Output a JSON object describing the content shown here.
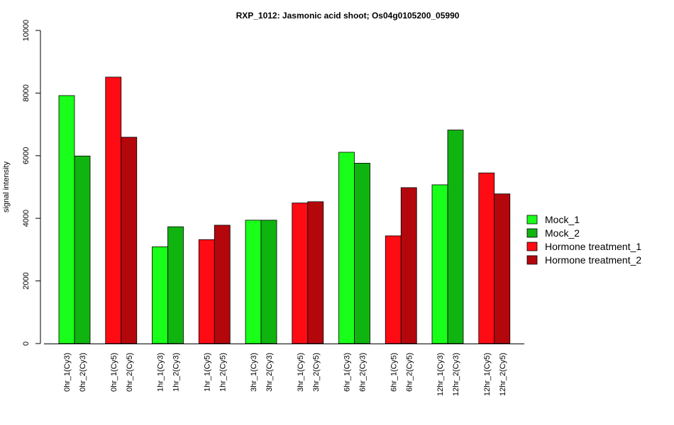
{
  "chart_data": {
    "type": "bar",
    "title": "RXP_1012: Jasmonic acid shoot; Os04g0105200_05990",
    "xlabel": "",
    "ylabel": "signal intensity",
    "ylim": [
      0,
      10000
    ],
    "yticks": [
      0,
      2000,
      4000,
      6000,
      8000,
      10000
    ],
    "grid": false,
    "legend_position": "right",
    "categories": [
      "0hr_1(Cy3)",
      "0hr_2(Cy3)",
      "0hr_1(Cy5)",
      "0hr_2(Cy5)",
      "1hr_1(Cy3)",
      "1hr_2(Cy3)",
      "1hr_1(Cy5)",
      "1hr_2(Cy5)",
      "3hr_1(Cy3)",
      "3hr_2(Cy3)",
      "3hr_1(Cy5)",
      "3hr_2(Cy5)",
      "6hr_1(Cy3)",
      "6hr_2(Cy3)",
      "6hr_1(Cy5)",
      "6hr_2(Cy5)",
      "12hr_1(Cy3)",
      "12hr_2(Cy3)",
      "12hr_1(Cy5)",
      "12hr_2(Cy5)"
    ],
    "values": [
      7920,
      5990,
      8510,
      6590,
      3090,
      3730,
      3320,
      3780,
      3940,
      3940,
      4490,
      4530,
      6110,
      5760,
      3440,
      4980,
      5070,
      6820,
      5450,
      4780
    ],
    "bar_series": [
      0,
      1,
      2,
      3,
      0,
      1,
      2,
      3,
      0,
      1,
      2,
      3,
      0,
      1,
      2,
      3,
      0,
      1,
      2,
      3
    ],
    "series": [
      {
        "name": "Mock_1",
        "color": "#19FF19"
      },
      {
        "name": "Mock_2",
        "color": "#10B410"
      },
      {
        "name": "Hormone treatment_1",
        "color": "#FF0B14"
      },
      {
        "name": "Hormone treatment_2",
        "color": "#B4070C"
      }
    ]
  }
}
